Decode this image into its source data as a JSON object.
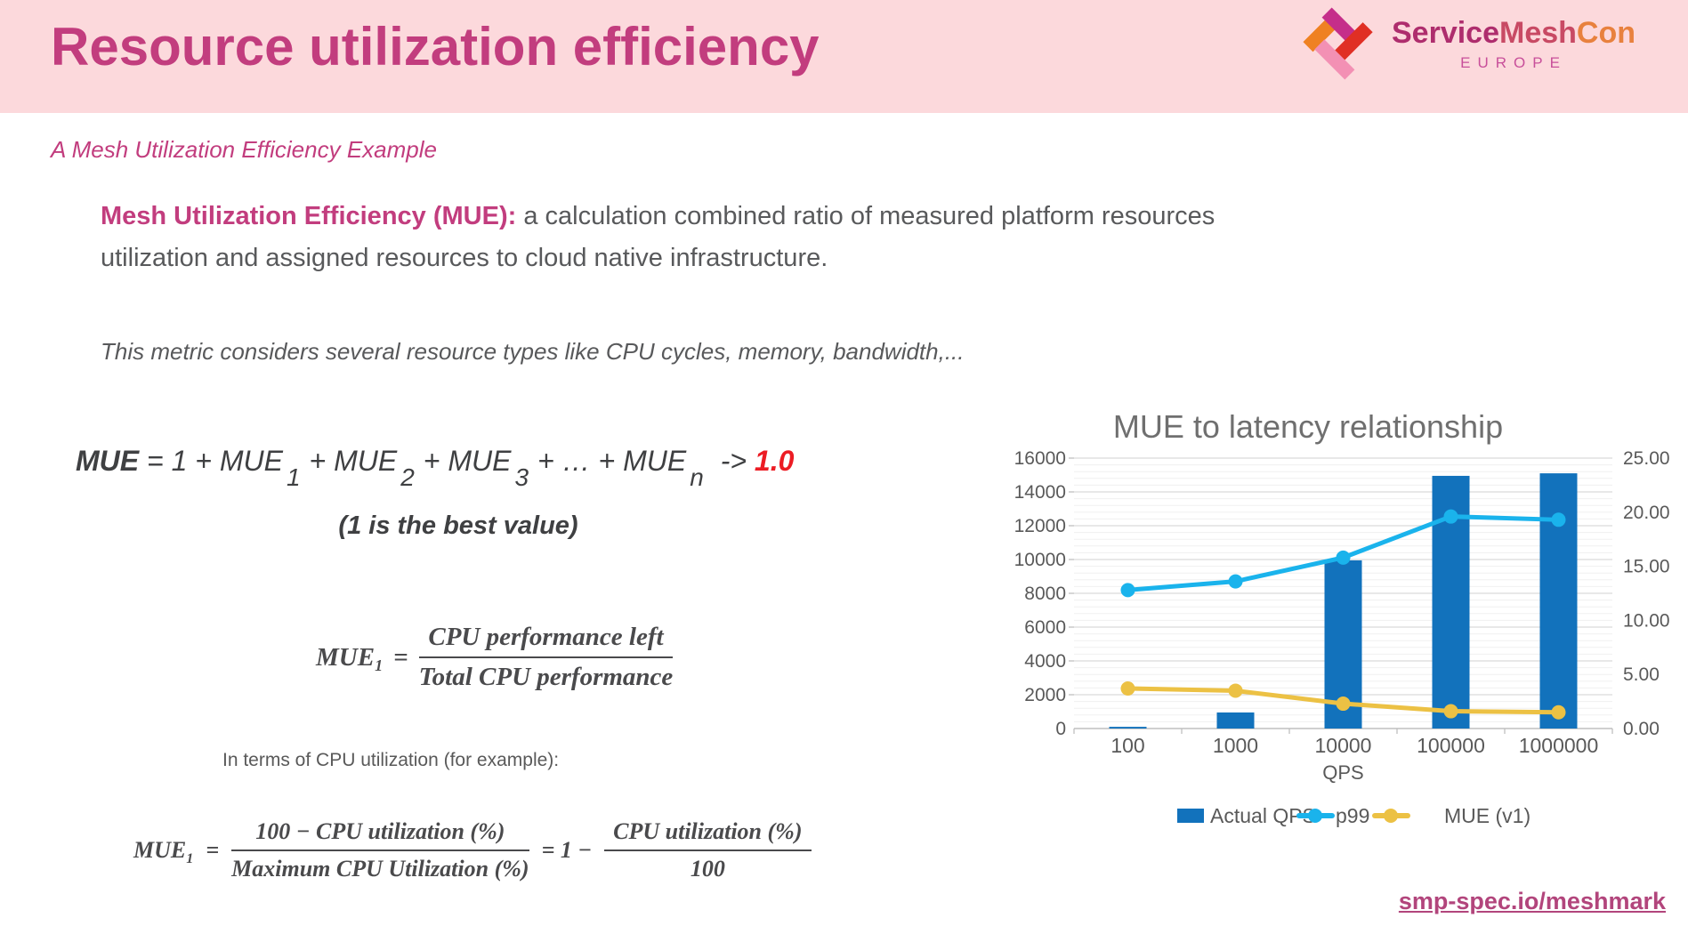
{
  "slide": {
    "title": "Resource utilization efficiency",
    "subtitle": "A Mesh Utilization Efficiency Example",
    "logo": {
      "brand_service": "Service",
      "brand_mesh": "Mesh",
      "brand_con": "Con",
      "region": "EUROPE"
    },
    "definition": {
      "lead": "Mesh Utilization Efficiency (MUE):",
      "line1": " a calculation combined ratio of measured platform resources",
      "line2": "utilization and assigned resources to cloud native infrastructure."
    },
    "note": "This metric considers several resource types like CPU cycles, memory, bandwidth,...",
    "link": "smp-spec.io/meshmark"
  },
  "formulas": {
    "sum": {
      "lhs": "MUE",
      "body": [
        {
          "t": " = 1 + MUE"
        },
        {
          "t": "1",
          "sub": true
        },
        {
          "t": "+ MUE"
        },
        {
          "t": "2",
          "sub": true
        },
        {
          "t": "+ MUE"
        },
        {
          "t": "3",
          "sub": true
        },
        {
          "t": "+ … + MUE"
        },
        {
          "t": "n",
          "sub": true
        },
        {
          "t": " -> "
        }
      ],
      "result": "1.0",
      "caption": "(1 is the best value)"
    },
    "mue1": {
      "lhs": "MUE",
      "lhs_sub": "1",
      "eq": "=",
      "num": "CPU performance left",
      "den": "Total CPU performance"
    },
    "cpu_note": "In terms of CPU utilization (for example):",
    "mue1_cpu": {
      "lhs": "MUE",
      "lhs_sub": "1",
      "eq": "=",
      "num1": "100 − CPU utilization (%)",
      "den1": "Maximum CPU Utilization (%)",
      "mid": "= 1 −",
      "num2": "CPU utilization (%)",
      "den2": "100"
    }
  },
  "chart_data": {
    "type": "bar+line combo",
    "title": "MUE to latency relationship",
    "categories": [
      "100",
      "1000",
      "10000",
      "100000",
      "1000000"
    ],
    "xlabel": "QPS",
    "left_axis": {
      "min": 0,
      "max": 16000,
      "step": 2000,
      "minor_step": 400,
      "labels": [
        "0",
        "2000",
        "4000",
        "6000",
        "8000",
        "10000",
        "12000",
        "14000",
        "16000"
      ]
    },
    "right_axis": {
      "min": 0,
      "max": 25,
      "step": 5,
      "labels": [
        "0.00",
        "5.00",
        "10.00",
        "15.00",
        "20.00",
        "25.00"
      ]
    },
    "series": [
      {
        "name": "Actual QPS",
        "type": "bar",
        "axis": "left",
        "color": "#1272bc",
        "values": [
          100,
          950,
          9950,
          14950,
          15100
        ]
      },
      {
        "name": "p99",
        "type": "line",
        "axis": "right",
        "color": "#1ab3ec",
        "values": [
          12.8,
          13.6,
          15.8,
          19.6,
          19.3
        ]
      },
      {
        "name": "MUE (v1)",
        "type": "line",
        "axis": "right",
        "color": "#ecc144",
        "values": [
          3.7,
          3.5,
          2.3,
          1.6,
          1.5
        ]
      }
    ],
    "grid": "horizontal major+minor",
    "legend_position": "bottom"
  },
  "colors": {
    "accent_pink": "#c23d7e",
    "header_band": "#fcd9dc",
    "body_grey": "#58595b",
    "formula_grey": "#3f4042",
    "result_red": "#ec1c24",
    "link_pink": "#b2457c",
    "bar_blue": "#1272bc",
    "line_cyan": "#1ab3ec",
    "line_yellow": "#ecc144",
    "chart_text": "#595959"
  }
}
